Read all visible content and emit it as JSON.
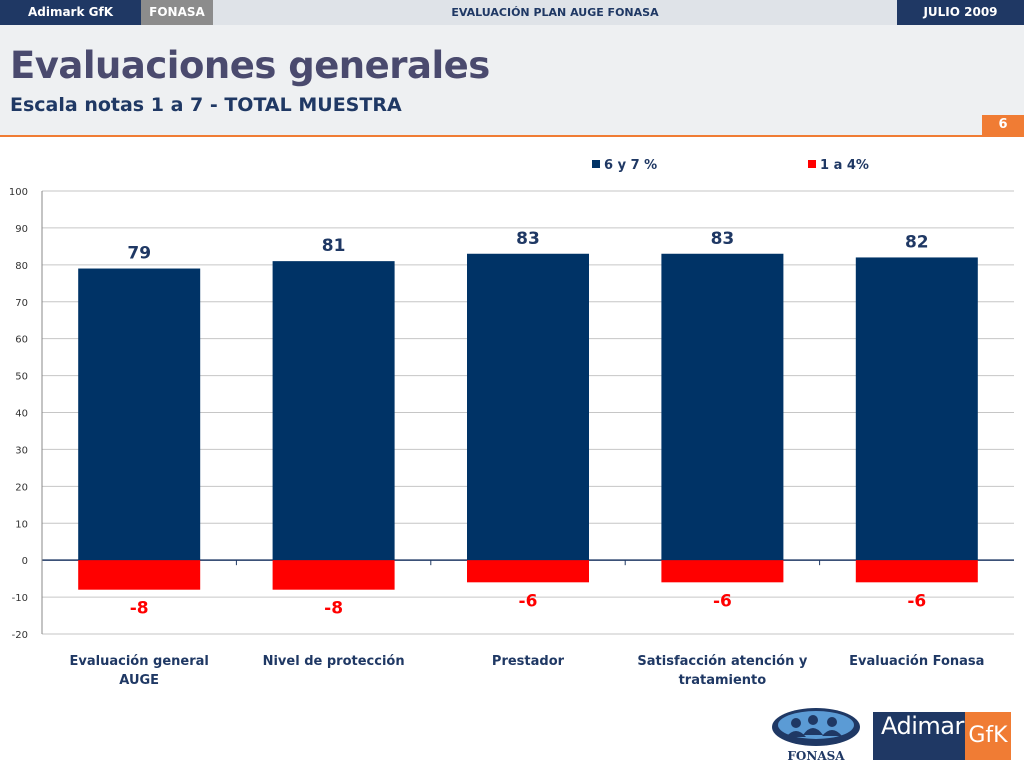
{
  "topbar": {
    "brand": "Adimark GfK",
    "client": "FONASA",
    "title": "EVALUACIÓN PLAN AUGE FONASA",
    "date": "JULIO 2009"
  },
  "header": {
    "title": "Evaluaciones generales",
    "subtitle": "Escala notas 1 a 7 - TOTAL MUESTRA",
    "page_number": "6"
  },
  "logos": {
    "fonasa": "FONASA",
    "adimark": "Adimark",
    "gfk": "GfK"
  },
  "colors": {
    "positive": "#003366",
    "negative": "#ff0000",
    "orange_accent": "#f07c34",
    "navy": "#1f3864"
  },
  "chart_data": {
    "type": "bar",
    "categories": [
      [
        "Evaluación general",
        "AUGE"
      ],
      [
        "Nivel de protección"
      ],
      [
        "Prestador"
      ],
      [
        "Satisfacción atención y",
        "tratamiento"
      ],
      [
        "Evaluación Fonasa"
      ]
    ],
    "series": [
      {
        "name": "6 y 7 %",
        "values": [
          79,
          81,
          83,
          83,
          82
        ],
        "labels": [
          "79",
          "81",
          "83",
          "83",
          "82"
        ],
        "color": "#003366"
      },
      {
        "name": "1 a 4%",
        "values": [
          -8,
          -8,
          -6,
          -6,
          -6
        ],
        "labels": [
          "-8",
          "-8",
          "-6",
          "-6",
          "-6"
        ],
        "color": "#ff0000"
      }
    ],
    "ylim": [
      -20,
      100
    ],
    "yticks": [
      -20,
      -10,
      0,
      10,
      20,
      30,
      40,
      50,
      60,
      70,
      80,
      90,
      100
    ],
    "grid": true,
    "legend_position": "top"
  }
}
